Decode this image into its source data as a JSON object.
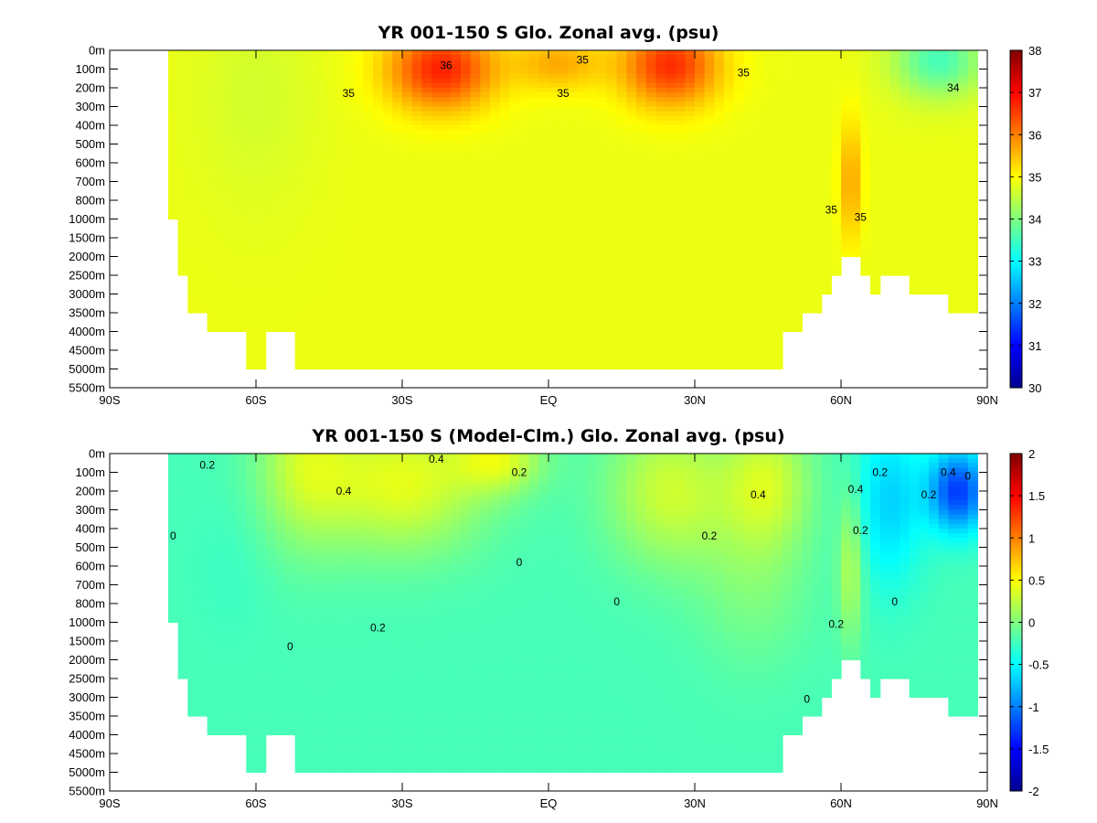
{
  "chart_data": [
    {
      "type": "heatmap",
      "title": "YR 001-150 S Glo. Zonal avg. (psu)",
      "xlabel": "",
      "ylabel": "",
      "x_range": [
        -90,
        90
      ],
      "x_ticks": [
        {
          "value": -90,
          "label": "90S"
        },
        {
          "value": -60,
          "label": "60S"
        },
        {
          "value": -30,
          "label": "30S"
        },
        {
          "value": 0,
          "label": "EQ"
        },
        {
          "value": 30,
          "label": "30N"
        },
        {
          "value": 60,
          "label": "60N"
        },
        {
          "value": 90,
          "label": "90N"
        }
      ],
      "y_ticks": [
        "0m",
        "100m",
        "200m",
        "300m",
        "400m",
        "500m",
        "600m",
        "700m",
        "800m",
        "1000m",
        "1500m",
        "2000m",
        "2500m",
        "3000m",
        "3500m",
        "4000m",
        "4500m",
        "5000m",
        "5500m"
      ],
      "colorbar": {
        "min": 30,
        "max": 38,
        "ticks": [
          "38",
          "37",
          "36",
          "35",
          "34",
          "33",
          "32",
          "31",
          "30"
        ]
      },
      "contour_labels": [
        {
          "text": "35",
          "lat": -41,
          "level": 2.3
        },
        {
          "text": "36",
          "lat": -21,
          "level": 0.8
        },
        {
          "text": "35",
          "lat": 7,
          "level": 0.5
        },
        {
          "text": "35",
          "lat": 3,
          "level": 2.3
        },
        {
          "text": "35",
          "lat": 40,
          "level": 1.2
        },
        {
          "text": "34",
          "lat": 83,
          "level": 2.0
        },
        {
          "text": "35",
          "lat": 58,
          "level": 8.5
        },
        {
          "text": "35",
          "lat": 64,
          "level": 8.9
        }
      ],
      "fields": {
        "base": 34.85,
        "features": [
          {
            "lat": -22,
            "level": 1.0,
            "amp": 1.9,
            "wlat": 11,
            "wlev": 2.2
          },
          {
            "lat": 25,
            "level": 0.8,
            "amp": 1.8,
            "wlat": 10,
            "wlev": 2.2
          },
          {
            "lat": 2,
            "level": 0.7,
            "amp": 0.8,
            "wlat": 9,
            "wlev": 1.5
          },
          {
            "lat": 62,
            "level": 7.0,
            "amp": 0.9,
            "wlat": 2.2,
            "wlev": 3.3
          },
          {
            "lat": 80,
            "level": 0.5,
            "amp": -1.3,
            "wlat": 9,
            "wlev": 2.0
          },
          {
            "lat": -60,
            "level": 2.5,
            "amp": -0.2,
            "wlat": 12,
            "wlev": 6.0
          }
        ],
        "ocean_mask": [
          {
            "lat_from": -78,
            "lat_to": -77,
            "bottom_level": 4
          },
          {
            "lat_from": -77,
            "lat_to": -75,
            "bottom_level": 9
          },
          {
            "lat_from": -75,
            "lat_to": -73,
            "bottom_level": 12
          },
          {
            "lat_from": -73,
            "lat_to": -70,
            "bottom_level": 14
          },
          {
            "lat_from": -70,
            "lat_to": -61,
            "bottom_level": 15
          },
          {
            "lat_from": -61,
            "lat_to": -58,
            "bottom_level": 17
          },
          {
            "lat_from": -58,
            "lat_to": -55,
            "bottom_level": 15
          },
          {
            "lat_from": -55,
            "lat_to": -51,
            "bottom_level": 15
          },
          {
            "lat_from": -51,
            "lat_to": 46,
            "bottom_level": 17
          },
          {
            "lat_from": 46,
            "lat_to": 49,
            "bottom_level": 17
          },
          {
            "lat_from": 49,
            "lat_to": 52,
            "bottom_level": 15
          },
          {
            "lat_from": 52,
            "lat_to": 56,
            "bottom_level": 14
          },
          {
            "lat_from": 56,
            "lat_to": 58,
            "bottom_level": 13
          },
          {
            "lat_from": 58,
            "lat_to": 60,
            "bottom_level": 12
          },
          {
            "lat_from": 60,
            "lat_to": 61.5,
            "bottom_level": 11
          },
          {
            "lat_from": 61.5,
            "lat_to": 63,
            "bottom_level": 10
          },
          {
            "lat_from": 63,
            "lat_to": 65,
            "bottom_level": 11
          },
          {
            "lat_from": 65,
            "lat_to": 67,
            "bottom_level": 12
          },
          {
            "lat_from": 67,
            "lat_to": 69,
            "bottom_level": 13
          },
          {
            "lat_from": 69,
            "lat_to": 74,
            "bottom_level": 12
          },
          {
            "lat_from": 74,
            "lat_to": 83,
            "bottom_level": 13
          },
          {
            "lat_from": 83,
            "lat_to": 88,
            "bottom_level": 14
          }
        ]
      }
    },
    {
      "type": "heatmap",
      "title": "YR 001-150 S (Model-Clm.) Glo. Zonal avg. (psu)",
      "xlabel": "",
      "ylabel": "",
      "x_range": [
        -90,
        90
      ],
      "x_ticks": [
        {
          "value": -90,
          "label": "90S"
        },
        {
          "value": -60,
          "label": "60S"
        },
        {
          "value": -30,
          "label": "30S"
        },
        {
          "value": 0,
          "label": "EQ"
        },
        {
          "value": 30,
          "label": "30N"
        },
        {
          "value": 60,
          "label": "60N"
        },
        {
          "value": 90,
          "label": "90N"
        }
      ],
      "y_ticks": [
        "0m",
        "100m",
        "200m",
        "300m",
        "400m",
        "500m",
        "600m",
        "700m",
        "800m",
        "1000m",
        "1500m",
        "2000m",
        "2500m",
        "3000m",
        "3500m",
        "4000m",
        "4500m",
        "5000m",
        "5500m"
      ],
      "colorbar": {
        "min": -2,
        "max": 2,
        "ticks": [
          "2",
          "1.5",
          "1",
          "0.5",
          "0",
          "-0.5",
          "-1",
          "-1.5",
          "-2"
        ]
      },
      "contour_labels": [
        {
          "text": "0.2",
          "lat": -70,
          "level": 0.6
        },
        {
          "text": "0.4",
          "lat": -23,
          "level": 0.3
        },
        {
          "text": "0.2",
          "lat": -6,
          "level": 1.0
        },
        {
          "text": "0.4",
          "lat": -42,
          "level": 2.0
        },
        {
          "text": "0",
          "lat": -77,
          "level": 4.4
        },
        {
          "text": "0",
          "lat": -6,
          "level": 5.8
        },
        {
          "text": "0",
          "lat": 14,
          "level": 7.9
        },
        {
          "text": "0.2",
          "lat": -35,
          "level": 9.3
        },
        {
          "text": "0",
          "lat": -53,
          "level": 10.3
        },
        {
          "text": "0.4",
          "lat": 43,
          "level": 2.2
        },
        {
          "text": "0.2",
          "lat": 33,
          "level": 4.4
        },
        {
          "text": "0.4",
          "lat": 63,
          "level": 1.9
        },
        {
          "text": "0.2",
          "lat": 68,
          "level": 1.0
        },
        {
          "text": "0.2",
          "lat": 64,
          "level": 4.1
        },
        {
          "text": "0.2",
          "lat": 59,
          "level": 9.1
        },
        {
          "text": "0",
          "lat": 71,
          "level": 7.9
        },
        {
          "text": "0",
          "lat": 53,
          "level": 13.1
        },
        {
          "text": "0.4",
          "lat": 82,
          "level": 1.0
        },
        {
          "text": "0.2",
          "lat": 78,
          "level": 2.2
        },
        {
          "text": "0",
          "lat": 86,
          "level": 1.2
        }
      ],
      "fields": {
        "base": -0.22,
        "features": [
          {
            "lat": -30,
            "level": 1.5,
            "amp": 0.62,
            "wlat": 17,
            "wlev": 3.8
          },
          {
            "lat": -50,
            "level": 0.5,
            "amp": 0.45,
            "wlat": 10,
            "wlev": 4.5
          },
          {
            "lat": -10,
            "level": 0.3,
            "amp": 0.52,
            "wlat": 9,
            "wlev": 1.8
          },
          {
            "lat": 25,
            "level": 2.0,
            "amp": 0.52,
            "wlat": 13,
            "wlev": 4.0
          },
          {
            "lat": 45,
            "level": 1.5,
            "amp": 0.5,
            "wlat": 9,
            "wlev": 3.6
          },
          {
            "lat": 42,
            "level": 7.0,
            "amp": 0.2,
            "wlat": 12,
            "wlev": 4.5
          },
          {
            "lat": 62,
            "level": 6.0,
            "amp": 0.45,
            "wlat": 2.5,
            "wlev": 4.0
          },
          {
            "lat": 84,
            "level": 2.0,
            "amp": -1.05,
            "wlat": 6,
            "wlev": 2.2
          },
          {
            "lat": 70,
            "level": 2.5,
            "amp": -0.45,
            "wlat": 7,
            "wlev": 4.5
          },
          {
            "lat": -65,
            "level": 6.0,
            "amp": -0.05,
            "wlat": 8,
            "wlev": 4.0
          }
        ],
        "ocean_mask": [
          {
            "lat_from": -78,
            "lat_to": -77,
            "bottom_level": 4
          },
          {
            "lat_from": -77,
            "lat_to": -75,
            "bottom_level": 9
          },
          {
            "lat_from": -75,
            "lat_to": -73,
            "bottom_level": 12
          },
          {
            "lat_from": -73,
            "lat_to": -70,
            "bottom_level": 14
          },
          {
            "lat_from": -70,
            "lat_to": -61,
            "bottom_level": 15
          },
          {
            "lat_from": -61,
            "lat_to": -58,
            "bottom_level": 17
          },
          {
            "lat_from": -58,
            "lat_to": -55,
            "bottom_level": 15
          },
          {
            "lat_from": -55,
            "lat_to": -51,
            "bottom_level": 15
          },
          {
            "lat_from": -51,
            "lat_to": 46,
            "bottom_level": 17
          },
          {
            "lat_from": 46,
            "lat_to": 49,
            "bottom_level": 17
          },
          {
            "lat_from": 49,
            "lat_to": 52,
            "bottom_level": 15
          },
          {
            "lat_from": 52,
            "lat_to": 56,
            "bottom_level": 14
          },
          {
            "lat_from": 56,
            "lat_to": 58,
            "bottom_level": 13
          },
          {
            "lat_from": 58,
            "lat_to": 60,
            "bottom_level": 12
          },
          {
            "lat_from": 60,
            "lat_to": 61.5,
            "bottom_level": 11
          },
          {
            "lat_from": 61.5,
            "lat_to": 63,
            "bottom_level": 10
          },
          {
            "lat_from": 63,
            "lat_to": 65,
            "bottom_level": 11
          },
          {
            "lat_from": 65,
            "lat_to": 67,
            "bottom_level": 12
          },
          {
            "lat_from": 67,
            "lat_to": 69,
            "bottom_level": 13
          },
          {
            "lat_from": 69,
            "lat_to": 74,
            "bottom_level": 12
          },
          {
            "lat_from": 74,
            "lat_to": 83,
            "bottom_level": 13
          },
          {
            "lat_from": 83,
            "lat_to": 88,
            "bottom_level": 14
          }
        ]
      }
    }
  ]
}
